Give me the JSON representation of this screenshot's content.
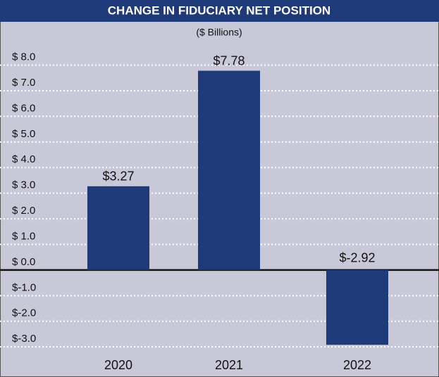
{
  "chart_data": {
    "type": "bar",
    "title": "CHANGE IN FIDUCIARY NET POSITION",
    "subtitle": "($ Billions)",
    "categories": [
      "2020",
      "2021",
      "2022"
    ],
    "values": [
      3.27,
      7.78,
      -2.92
    ],
    "value_labels": [
      "$3.27",
      "$7.78",
      "$-2.92"
    ],
    "color": "#1f3a78",
    "ylim": [
      -3.6,
      8.4
    ],
    "yticks": [
      {
        "value": 8,
        "label": "$ 8.0"
      },
      {
        "value": 7,
        "label": "$ 7.0"
      },
      {
        "value": 6,
        "label": "$ 6.0"
      },
      {
        "value": 5,
        "label": "$ 5.0"
      },
      {
        "value": 4,
        "label": "$ 4.0"
      },
      {
        "value": 3,
        "label": "$ 3.0"
      },
      {
        "value": 2,
        "label": "$ 2.0"
      },
      {
        "value": 1,
        "label": "$ 1.0"
      },
      {
        "value": 0,
        "label": "$ 0.0"
      },
      {
        "value": -1,
        "label": "$-1.0"
      },
      {
        "value": -2,
        "label": "$-2.0"
      },
      {
        "value": -3,
        "label": "$-3.0"
      }
    ],
    "grid": true
  }
}
